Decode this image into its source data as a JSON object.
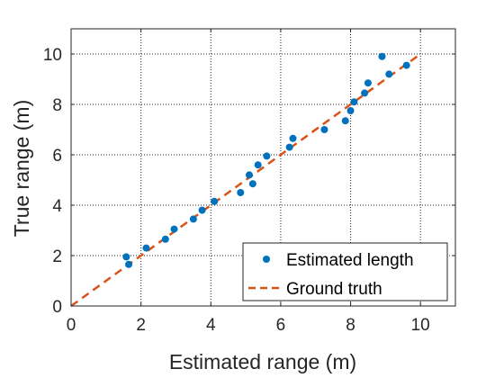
{
  "chart_data": {
    "type": "scatter",
    "xlabel": "Estimated range (m)",
    "ylabel": "True range (m)",
    "xlim": [
      0,
      11
    ],
    "ylim": [
      0,
      11
    ],
    "xticks": [
      "0",
      "2",
      "4",
      "6",
      "8",
      "10"
    ],
    "yticks": [
      "0",
      "2",
      "4",
      "6",
      "8",
      "10"
    ],
    "grid": true,
    "legend_position": "bottom-right",
    "series": [
      {
        "name": "Estimated length",
        "kind": "scatter",
        "color": "#0072BD",
        "x": [
          1.58,
          1.65,
          2.15,
          2.7,
          2.95,
          3.5,
          3.75,
          4.1,
          4.85,
          5.1,
          5.2,
          5.35,
          5.6,
          6.25,
          6.35,
          7.25,
          7.85,
          8.0,
          8.1,
          8.4,
          8.5,
          8.9,
          9.1,
          9.6
        ],
        "y": [
          1.95,
          1.65,
          2.3,
          2.65,
          3.05,
          3.45,
          3.8,
          4.15,
          4.5,
          5.2,
          4.85,
          5.6,
          5.95,
          6.3,
          6.65,
          7.0,
          7.35,
          7.75,
          8.1,
          8.45,
          8.85,
          9.9,
          9.2,
          9.55
        ]
      },
      {
        "name": "Ground truth",
        "kind": "dashed-line",
        "color": "#D95319",
        "x": [
          0,
          10
        ],
        "y": [
          0,
          10
        ]
      }
    ]
  }
}
